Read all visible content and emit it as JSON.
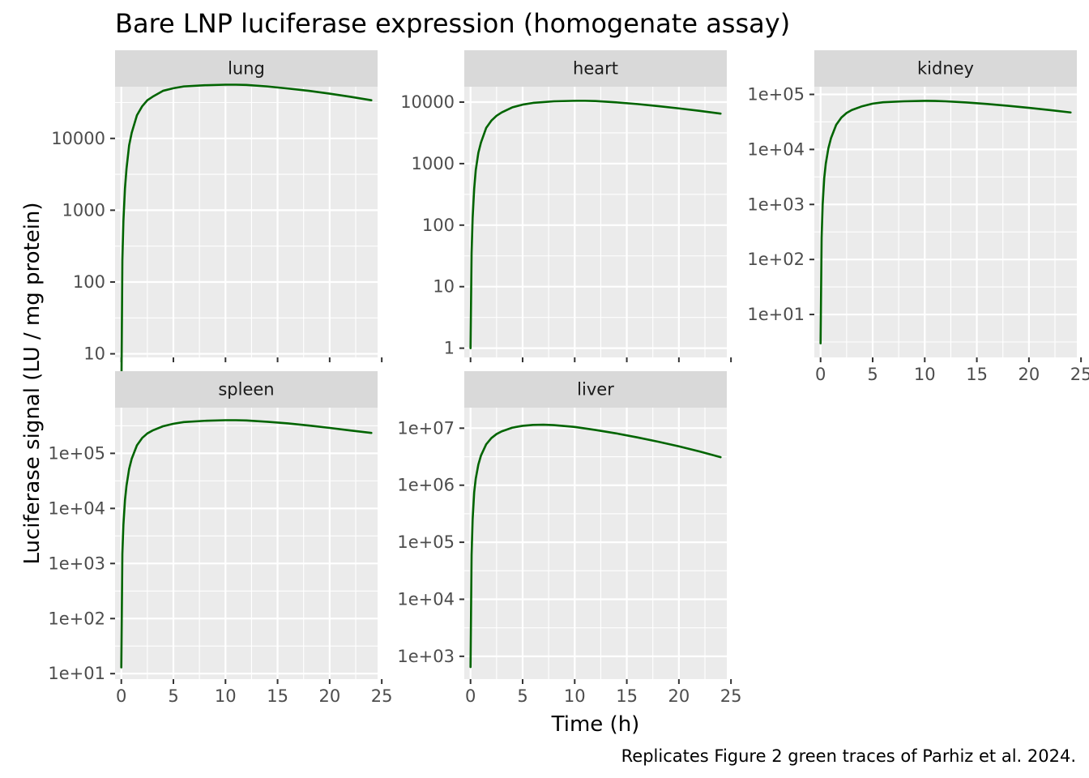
{
  "title": "Bare LNP luciferase expression (homogenate assay)",
  "xlabel": "Time (h)",
  "ylabel": "Luciferase signal (LU / mg protein)",
  "caption": "Replicates Figure 2 green traces of Parhiz et al. 2024.",
  "colors": {
    "line": "#006400",
    "panel_bg": "#ebebeb",
    "strip_bg": "#d9d9d9",
    "grid": "#ffffff",
    "text": "#4d4d4d"
  },
  "chart_data": {
    "type": "line",
    "facet_layout": "3 columns x 2 rows, y scales free, x shown on bottom of each column",
    "x_scale": "linear",
    "y_scale": "log10",
    "xlim": [
      -0.6,
      24.6
    ],
    "x_ticks": [
      "0",
      "5",
      "10",
      "15",
      "20",
      "25"
    ],
    "grid": true,
    "series_color": "#006400",
    "panels": [
      {
        "name": "lung",
        "ylim_log10": [
          0.95,
          4.72
        ],
        "y_ticks": [
          {
            "label": "10",
            "log": 1
          },
          {
            "label": "100",
            "log": 2
          },
          {
            "label": "1000",
            "log": 3
          },
          {
            "label": "10000",
            "log": 4
          }
        ],
        "x": [
          0,
          0.1,
          0.2,
          0.35,
          0.5,
          0.75,
          1,
          1.5,
          2,
          2.5,
          3,
          4,
          5,
          6,
          8,
          10,
          11,
          12,
          14,
          16,
          18,
          20,
          22,
          24
        ],
        "y": [
          2,
          200,
          700,
          2000,
          3800,
          8000,
          12000,
          21000,
          28000,
          34000,
          38000,
          46000,
          50000,
          53000,
          55000,
          56000,
          56000,
          55500,
          53000,
          49500,
          46000,
          42000,
          38000,
          34000
        ]
      },
      {
        "name": "heart",
        "ylim_log10": [
          -0.15,
          4.25
        ],
        "y_ticks": [
          {
            "label": "1",
            "log": 0
          },
          {
            "label": "10",
            "log": 1
          },
          {
            "label": "100",
            "log": 2
          },
          {
            "label": "1000",
            "log": 3
          },
          {
            "label": "10000",
            "log": 4
          }
        ],
        "x": [
          0,
          0.1,
          0.2,
          0.35,
          0.5,
          0.75,
          1,
          1.5,
          2,
          2.5,
          3,
          4,
          5,
          6,
          8,
          10,
          11,
          12,
          14,
          16,
          18,
          20,
          22,
          24
        ],
        "y": [
          1,
          35,
          130,
          390,
          780,
          1500,
          2200,
          3800,
          5000,
          6000,
          6800,
          8200,
          9100,
          9700,
          10300,
          10500,
          10500,
          10400,
          9900,
          9300,
          8600,
          7900,
          7200,
          6500
        ]
      },
      {
        "name": "kidney",
        "ylim_log10": [
          0.22,
          5.14
        ],
        "y_ticks": [
          {
            "label": "1e+01",
            "log": 1
          },
          {
            "label": "1e+02",
            "log": 2
          },
          {
            "label": "1e+03",
            "log": 3
          },
          {
            "label": "1e+04",
            "log": 4
          },
          {
            "label": "1e+05",
            "log": 5
          }
        ],
        "x": [
          0,
          0.1,
          0.2,
          0.35,
          0.5,
          0.75,
          1,
          1.5,
          2,
          2.5,
          3,
          4,
          5,
          6,
          8,
          10,
          11,
          12,
          14,
          16,
          18,
          20,
          22,
          24
        ],
        "y": [
          3,
          250,
          1000,
          3000,
          5500,
          10500,
          16000,
          28000,
          38000,
          46000,
          52000,
          61000,
          68000,
          72000,
          75000,
          76500,
          76000,
          75000,
          71500,
          67000,
          62000,
          57000,
          52000,
          47000
        ]
      },
      {
        "name": "spleen",
        "ylim_log10": [
          0.9,
          5.83
        ],
        "y_ticks": [
          {
            "label": "1e+01",
            "log": 1
          },
          {
            "label": "1e+02",
            "log": 2
          },
          {
            "label": "1e+03",
            "log": 3
          },
          {
            "label": "1e+04",
            "log": 4
          },
          {
            "label": "1e+05",
            "log": 5
          }
        ],
        "x": [
          0,
          0.1,
          0.2,
          0.35,
          0.5,
          0.75,
          1,
          1.5,
          2,
          2.5,
          3,
          4,
          5,
          6,
          8,
          10,
          11,
          12,
          14,
          16,
          18,
          20,
          22,
          24
        ],
        "y": [
          13,
          1500,
          5000,
          14000,
          26000,
          52000,
          80000,
          140000,
          190000,
          230000,
          260000,
          310000,
          345000,
          370000,
          390000,
          400000,
          400000,
          395000,
          375000,
          350000,
          320000,
          290000,
          260000,
          235000
        ]
      },
      {
        "name": "liver",
        "ylim_log10": [
          2.6,
          7.36
        ],
        "y_ticks": [
          {
            "label": "1e+03",
            "log": 3
          },
          {
            "label": "1e+04",
            "log": 4
          },
          {
            "label": "1e+05",
            "log": 5
          },
          {
            "label": "1e+06",
            "log": 6
          },
          {
            "label": "1e+07",
            "log": 7
          }
        ],
        "x": [
          0,
          0.1,
          0.2,
          0.35,
          0.5,
          0.75,
          1,
          1.5,
          2,
          2.5,
          3,
          4,
          5,
          6,
          7,
          8,
          10,
          12,
          14,
          16,
          18,
          20,
          22,
          24
        ],
        "y": [
          650,
          60000,
          250000,
          750000,
          1300000,
          2300000,
          3300000,
          5200000,
          6700000,
          7900000,
          8800000,
          10200000,
          11000000,
          11400000,
          11500000,
          11300000,
          10500000,
          9300000,
          8100000,
          6900000,
          5800000,
          4800000,
          3900000,
          3100000
        ]
      }
    ]
  }
}
